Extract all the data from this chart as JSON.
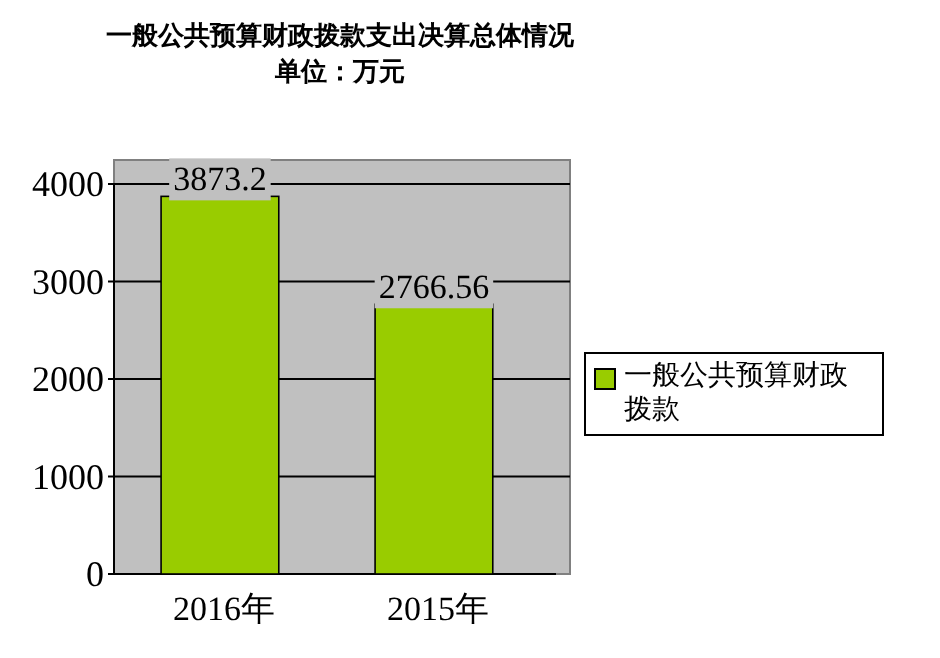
{
  "chart_data": {
    "type": "bar",
    "title": "一般公共预算财政拨款支出决算总体情况",
    "subtitle": "单位：万元",
    "categories": [
      "2016年",
      "2015年"
    ],
    "series": [
      {
        "name": "一般公共预算财政拨款",
        "color": "#99cc00",
        "values": [
          3873.2,
          2766.56
        ]
      }
    ],
    "ylim": [
      0,
      4000
    ],
    "yticks": [
      0,
      1000,
      2000,
      3000,
      4000
    ],
    "grid": "y",
    "legend": "right",
    "data_labels": true
  }
}
